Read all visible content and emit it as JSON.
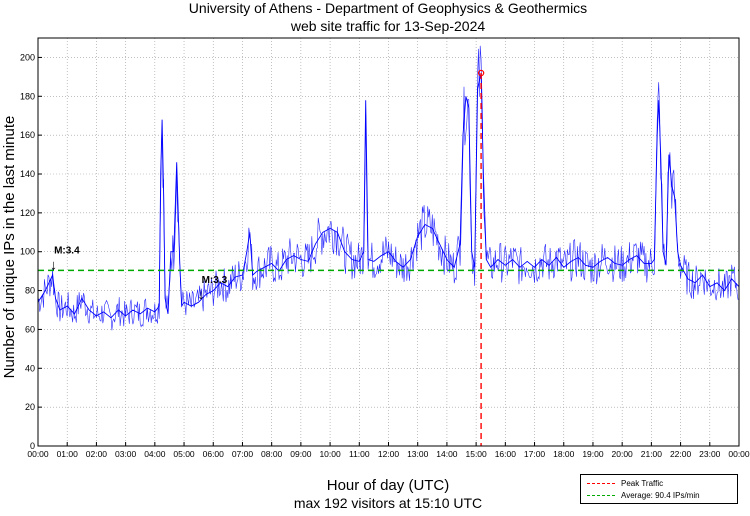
{
  "chart_data": {
    "type": "line",
    "title_line1": "University of Athens - Department of Geophysics & Geothermics",
    "title_line2": "web site traffic for 13-Sep-2024",
    "xlabel": "Hour of day (UTC)",
    "subtitle": "max 192 visitors at 15:10 UTC",
    "ylabel": "Number of unique IPs in the last minute",
    "ylim": [
      0,
      210
    ],
    "xlim_hours": [
      0,
      24
    ],
    "y_ticks": [
      "0",
      "20",
      "40",
      "60",
      "80",
      "100",
      "120",
      "140",
      "160",
      "180",
      "200"
    ],
    "x_ticks": [
      "00:00",
      "01:00",
      "02:00",
      "03:00",
      "04:00",
      "05:00",
      "06:00",
      "07:00",
      "08:00",
      "09:00",
      "10:00",
      "11:00",
      "12:00",
      "13:00",
      "14:00",
      "15:00",
      "16:00",
      "17:00",
      "18:00",
      "19:00",
      "20:00",
      "21:00",
      "22:00",
      "23:00",
      "00:00"
    ],
    "grid": true,
    "series": [
      {
        "name": "Traffic",
        "color": "#0000ff",
        "points_hour_value": [
          [
            0.0,
            74
          ],
          [
            0.25,
            80
          ],
          [
            0.5,
            88
          ],
          [
            0.6,
            76
          ],
          [
            0.75,
            70
          ],
          [
            1.0,
            72
          ],
          [
            1.25,
            68
          ],
          [
            1.5,
            76
          ],
          [
            1.75,
            70
          ],
          [
            2.0,
            67
          ],
          [
            2.25,
            69
          ],
          [
            2.5,
            66
          ],
          [
            2.75,
            70
          ],
          [
            3.0,
            67
          ],
          [
            3.25,
            70
          ],
          [
            3.5,
            68
          ],
          [
            3.75,
            71
          ],
          [
            4.0,
            69
          ],
          [
            4.15,
            72
          ],
          [
            4.2,
            140
          ],
          [
            4.25,
            168
          ],
          [
            4.3,
            130
          ],
          [
            4.35,
            76
          ],
          [
            4.45,
            68
          ],
          [
            4.55,
            100
          ],
          [
            4.65,
            100
          ],
          [
            4.75,
            146
          ],
          [
            4.85,
            95
          ],
          [
            4.92,
            72
          ],
          [
            5.0,
            74
          ],
          [
            5.25,
            72
          ],
          [
            5.5,
            74
          ],
          [
            5.75,
            78
          ],
          [
            6.0,
            80
          ],
          [
            6.25,
            84
          ],
          [
            6.5,
            82
          ],
          [
            6.75,
            87
          ],
          [
            7.0,
            88
          ],
          [
            7.15,
            100
          ],
          [
            7.25,
            110
          ],
          [
            7.35,
            88
          ],
          [
            7.5,
            90
          ],
          [
            7.75,
            92
          ],
          [
            8.0,
            94
          ],
          [
            8.25,
            90
          ],
          [
            8.5,
            96
          ],
          [
            8.75,
            98
          ],
          [
            9.0,
            96
          ],
          [
            9.25,
            95
          ],
          [
            9.5,
            104
          ],
          [
            9.75,
            110
          ],
          [
            10.0,
            112
          ],
          [
            10.25,
            110
          ],
          [
            10.5,
            100
          ],
          [
            10.75,
            96
          ],
          [
            11.0,
            95
          ],
          [
            11.15,
            100
          ],
          [
            11.22,
            178
          ],
          [
            11.3,
            96
          ],
          [
            11.5,
            95
          ],
          [
            11.75,
            98
          ],
          [
            12.0,
            100
          ],
          [
            12.25,
            95
          ],
          [
            12.5,
            92
          ],
          [
            12.75,
            96
          ],
          [
            13.0,
            108
          ],
          [
            13.25,
            114
          ],
          [
            13.5,
            112
          ],
          [
            13.75,
            104
          ],
          [
            14.0,
            96
          ],
          [
            14.25,
            92
          ],
          [
            14.45,
            104
          ],
          [
            14.55,
            160
          ],
          [
            14.65,
            180
          ],
          [
            14.75,
            174
          ],
          [
            14.85,
            100
          ],
          [
            14.95,
            92
          ],
          [
            15.05,
            184
          ],
          [
            15.17,
            192
          ],
          [
            15.25,
            140
          ],
          [
            15.35,
            96
          ],
          [
            15.5,
            92
          ],
          [
            15.75,
            96
          ],
          [
            16.0,
            93
          ],
          [
            16.25,
            96
          ],
          [
            16.5,
            92
          ],
          [
            16.75,
            95
          ],
          [
            17.0,
            92
          ],
          [
            17.25,
            96
          ],
          [
            17.5,
            93
          ],
          [
            17.75,
            97
          ],
          [
            18.0,
            92
          ],
          [
            18.25,
            95
          ],
          [
            18.5,
            97
          ],
          [
            18.75,
            93
          ],
          [
            19.0,
            92
          ],
          [
            19.25,
            95
          ],
          [
            19.5,
            97
          ],
          [
            19.75,
            94
          ],
          [
            20.0,
            93
          ],
          [
            20.25,
            96
          ],
          [
            20.5,
            98
          ],
          [
            20.75,
            94
          ],
          [
            21.0,
            94
          ],
          [
            21.1,
            96
          ],
          [
            21.2,
            160
          ],
          [
            21.25,
            178
          ],
          [
            21.32,
            150
          ],
          [
            21.4,
            100
          ],
          [
            21.5,
            93
          ],
          [
            21.6,
            150
          ],
          [
            21.7,
            134
          ],
          [
            21.8,
            128
          ],
          [
            21.9,
            100
          ],
          [
            22.0,
            93
          ],
          [
            22.25,
            86
          ],
          [
            22.5,
            84
          ],
          [
            22.75,
            88
          ],
          [
            23.0,
            82
          ],
          [
            23.25,
            84
          ],
          [
            23.5,
            80
          ],
          [
            23.75,
            86
          ],
          [
            24.0,
            82
          ]
        ]
      }
    ],
    "average_value": 90.4,
    "peak_value": 192,
    "peak_hour": 15.17,
    "annotations": [
      {
        "text": "M:3.4",
        "hour": 0.55,
        "value": 99,
        "arrow": "↓"
      },
      {
        "text": "M:3.3",
        "hour": 5.6,
        "value": 84,
        "arrow": "↓"
      }
    ],
    "legend": {
      "placement": "bottom-right, below the plot",
      "items": [
        {
          "label": "Peak Traffic",
          "color": "#ff0000"
        },
        {
          "label": "Average: 90.4 IPs/min",
          "color": "#00aa00"
        }
      ]
    }
  }
}
